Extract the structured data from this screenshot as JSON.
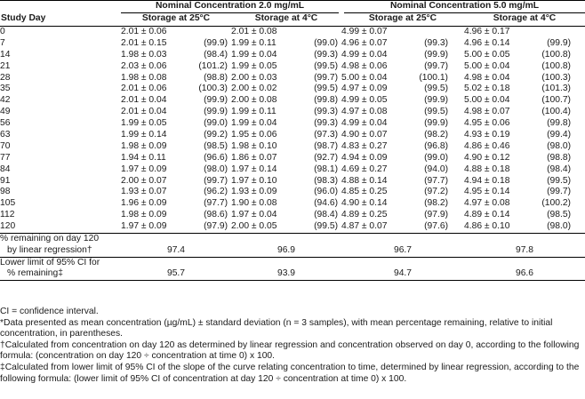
{
  "header": {
    "group_2": "Nominal Concentration 2.0 mg/mL",
    "group_5": "Nominal Concentration 5.0 mg/mL",
    "col_day": "Study Day",
    "col_25a": "Storage at 25°C",
    "col_4a": "Storage at 4°C",
    "col_25b": "Storage at 25°C",
    "col_4b": "Storage at 4°C"
  },
  "rows": [
    {
      "day": "0",
      "c1": "2.01 ± 0.06",
      "p1": "",
      "c2": "2.01 ± 0.08",
      "p2": "",
      "c3": "4.99 ± 0.07",
      "p3": "",
      "c4": "4.96 ± 0.17",
      "p4": ""
    },
    {
      "day": "7",
      "c1": "2.01 ± 0.15",
      "p1": "(99.9)",
      "c2": "1.99 ± 0.11",
      "p2": "(99.0)",
      "c3": "4.96 ± 0.07",
      "p3": "(99.3)",
      "c4": "4.96 ± 0.14",
      "p4": "(99.9)"
    },
    {
      "day": "14",
      "c1": "1.98 ± 0.03",
      "p1": "(98.4)",
      "c2": "1.99 ± 0.04",
      "p2": "(99.3)",
      "c3": "4.99 ± 0.04",
      "p3": "(99.9)",
      "c4": "5.00 ± 0.05",
      "p4": "(100.8)"
    },
    {
      "day": "21",
      "c1": "2.03 ± 0.06",
      "p1": "(101.2)",
      "c2": "1.99 ± 0.05",
      "p2": "(99.5)",
      "c3": "4.98 ± 0.06",
      "p3": "(99.7)",
      "c4": "5.00 ± 0.04",
      "p4": "(100.8)"
    },
    {
      "day": "28",
      "c1": "1.98 ± 0.08",
      "p1": "(98.8)",
      "c2": "2.00 ± 0.03",
      "p2": "(99.7)",
      "c3": "5.00 ± 0.04",
      "p3": "(100.1)",
      "c4": "4.98 ± 0.04",
      "p4": "(100.3)"
    },
    {
      "day": "35",
      "c1": "2.01 ± 0.06",
      "p1": "(100.3)",
      "c2": "2.00 ± 0.02",
      "p2": "(99.5)",
      "c3": "4.97 ± 0.09",
      "p3": "(99.5)",
      "c4": "5.02 ± 0.18",
      "p4": "(101.3)"
    },
    {
      "day": "42",
      "c1": "2.01 ± 0.04",
      "p1": "(99.9)",
      "c2": "2.00 ± 0.08",
      "p2": "(99.8)",
      "c3": "4.99 ± 0.05",
      "p3": "(99.9)",
      "c4": "5.00 ± 0.04",
      "p4": "(100.7)"
    },
    {
      "day": "49",
      "c1": "2.01 ± 0.04",
      "p1": "(99.9)",
      "c2": "1.99 ± 0.11",
      "p2": "(99.3)",
      "c3": "4.97 ± 0.08",
      "p3": "(99.5)",
      "c4": "4.98 ± 0.07",
      "p4": "(100.4)"
    },
    {
      "day": "56",
      "c1": "1.99 ± 0.05",
      "p1": "(99.0)",
      "c2": "1.99 ± 0.04",
      "p2": "(99.3)",
      "c3": "4.99 ± 0.04",
      "p3": "(99.9)",
      "c4": "4.95 ± 0.06",
      "p4": "(99.8)"
    },
    {
      "day": "63",
      "c1": "1.99 ± 0.14",
      "p1": "(99.2)",
      "c2": "1.95 ± 0.06",
      "p2": "(97.3)",
      "c3": "4.90 ± 0.07",
      "p3": "(98.2)",
      "c4": "4.93 ± 0.19",
      "p4": "(99.4)"
    },
    {
      "day": "70",
      "c1": "1.98 ± 0.09",
      "p1": "(98.5)",
      "c2": "1.98 ± 0.10",
      "p2": "(98.7)",
      "c3": "4.83 ± 0.27",
      "p3": "(96.8)",
      "c4": "4.86 ± 0.46",
      "p4": "(98.0)"
    },
    {
      "day": "77",
      "c1": "1.94 ± 0.11",
      "p1": "(96.6)",
      "c2": "1.86 ± 0.07",
      "p2": "(92.7)",
      "c3": "4.94 ± 0.09",
      "p3": "(99.0)",
      "c4": "4.90 ± 0.12",
      "p4": "(98.8)"
    },
    {
      "day": "84",
      "c1": "1.97 ± 0.09",
      "p1": "(98.0)",
      "c2": "1.97 ± 0.14",
      "p2": "(98.1)",
      "c3": "4.69 ± 0.27",
      "p3": "(94.0)",
      "c4": "4.88 ± 0.18",
      "p4": "(98.4)"
    },
    {
      "day": "91",
      "c1": "2.00 ± 0.07",
      "p1": "(99.7)",
      "c2": "1.97 ± 0.10",
      "p2": "(98.3)",
      "c3": "4.88 ± 0.14",
      "p3": "(97.7)",
      "c4": "4.94 ± 0.18",
      "p4": "(99.5)"
    },
    {
      "day": "98",
      "c1": "1.93 ± 0.07",
      "p1": "(96.2)",
      "c2": "1.93 ± 0.09",
      "p2": "(96.0)",
      "c3": "4.85 ± 0.25",
      "p3": "(97.2)",
      "c4": "4.95 ± 0.14",
      "p4": "(99.7)"
    },
    {
      "day": "105",
      "c1": "1.96 ± 0.09",
      "p1": "(97.7)",
      "c2": "1.90 ± 0.08",
      "p2": "(94.6)",
      "c3": "4.90 ± 0.14",
      "p3": "(98.2)",
      "c4": "4.97 ± 0.08",
      "p4": "(100.2)"
    },
    {
      "day": "112",
      "c1": "1.98 ± 0.09",
      "p1": "(98.6)",
      "c2": "1.97 ± 0.04",
      "p2": "(98.4)",
      "c3": "4.89 ± 0.25",
      "p3": "(97.9)",
      "c4": "4.89 ± 0.14",
      "p4": "(98.5)"
    },
    {
      "day": "120",
      "c1": "1.97 ± 0.09",
      "p1": "(97.9)",
      "c2": "2.00 ± 0.05",
      "p2": "(99.5)",
      "c3": "4.87 ± 0.07",
      "p3": "(97.6)",
      "c4": "4.86 ± 0.10",
      "p4": "(98.0)"
    }
  ],
  "summary": [
    {
      "label_1": "% remaining on day 120",
      "label_2": "by linear regression†",
      "v1": "97.4",
      "v2": "96.9",
      "v3": "96.7",
      "v4": "97.8"
    },
    {
      "label_1": "Lower limit of 95% CI for",
      "label_2": "% remaining‡",
      "v1": "95.7",
      "v2": "93.9",
      "v3": "94.7",
      "v4": "96.6"
    }
  ],
  "notes": {
    "ci": "CI = confidence interval.",
    "star": "*Data presented as mean concentration (µg/mL) ± standard deviation (n = 3 samples), with mean percentage remaining, relative to initial concentration, in parentheses.",
    "dagger": "†Calculated from concentration on day 120 as determined by linear regression and concentration observed on day 0, according to the following formula: (concentration on day 120 ÷ concentration at time 0) x 100.",
    "ddagger": "‡Calculated from lower limit of 95% CI of the slope of the curve relating concentration to time, determined by linear regression, according to the following formula: (lower limit of 95% CI of concentration at day 120 ÷ concentration at time 0) x 100."
  }
}
